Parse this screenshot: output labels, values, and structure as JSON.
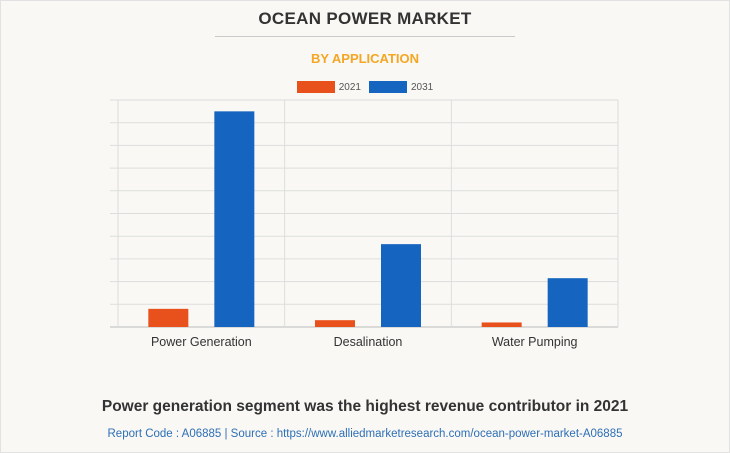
{
  "header": {
    "title": "OCEAN POWER MARKET",
    "subtitle": "BY APPLICATION"
  },
  "footer": {
    "headline": "Power generation segment was the highest revenue contributor in 2021",
    "source_line": "Report Code : A06885  |  Source : https://www.alliedmarketresearch.com/ocean-power-market-A06885"
  },
  "colors": {
    "series_2021": "#e8511c",
    "series_2031": "#1565c0",
    "subtitle": "#f5a623",
    "grid": "#dddddd",
    "axis": "#bbbbbb"
  },
  "chart_data": {
    "type": "bar",
    "categories": [
      "Power Generation",
      "Desalination",
      "Water Pumping"
    ],
    "series": [
      {
        "name": "2021",
        "values": [
          8,
          3,
          2
        ]
      },
      {
        "name": "2031",
        "values": [
          95,
          36.5,
          21.5
        ]
      }
    ],
    "ylim": [
      0,
      100
    ],
    "y_ticks_shown": false,
    "grid": true,
    "legend_position": "top-center"
  }
}
